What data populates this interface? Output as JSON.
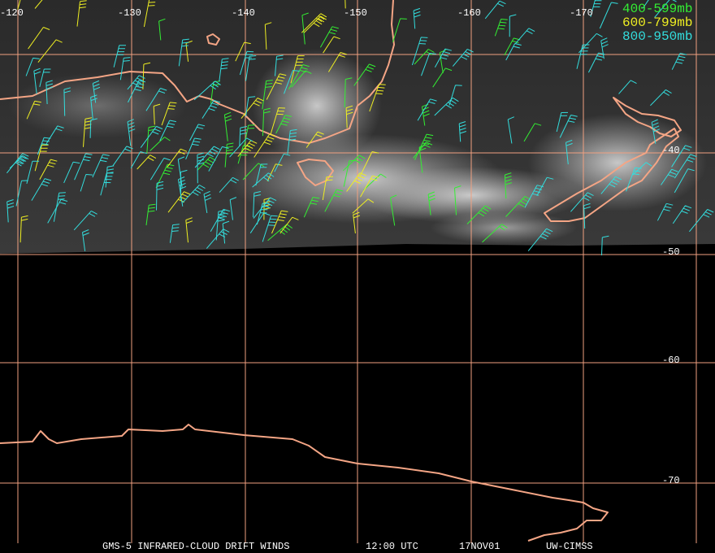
{
  "map": {
    "longitude_labels": [
      "-120",
      "-130",
      "-140",
      "-150",
      "-160",
      "-170"
    ],
    "latitude_labels": [
      "-40",
      "-50",
      "-60",
      "-70"
    ],
    "legend": [
      {
        "label": "400-599mb",
        "color": "#33ee33"
      },
      {
        "label": "600-799mb",
        "color": "#eeee22"
      },
      {
        "label": "800-950mb",
        "color": "#33dddd"
      }
    ],
    "footer": [
      "GMS-5 INFRARED-CLOUD DRIFT WINDS",
      "12:00 UTC",
      "17NOV01",
      "UW-CIMSS"
    ]
  }
}
